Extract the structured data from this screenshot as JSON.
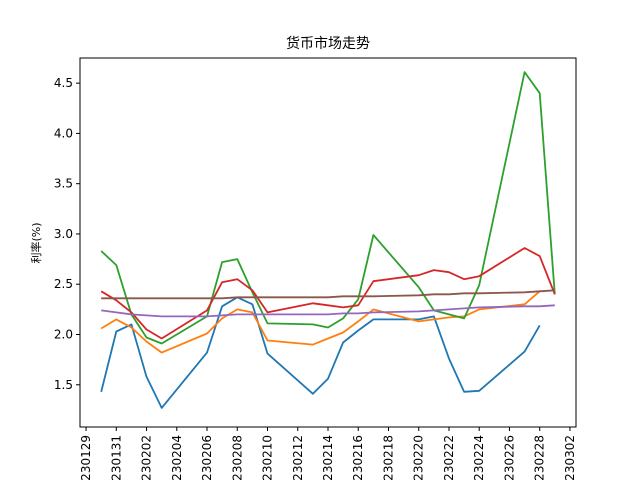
{
  "chart_data": {
    "type": "line",
    "title": "货币市场走势",
    "xlabel": "",
    "ylabel": "利率(%)",
    "xlim": [
      230128.6,
      230302.4
    ],
    "ylim": [
      1.08,
      4.75
    ],
    "xticks": [
      {
        "value": 230129,
        "label": "230129"
      },
      {
        "value": 230131,
        "label": "230131"
      },
      {
        "value": 230202,
        "label": "230202"
      },
      {
        "value": 230204,
        "label": "230204"
      },
      {
        "value": 230206,
        "label": "230206"
      },
      {
        "value": 230208,
        "label": "230208"
      },
      {
        "value": 230210,
        "label": "230210"
      },
      {
        "value": 230212,
        "label": "230212"
      },
      {
        "value": 230214,
        "label": "230214"
      },
      {
        "value": 230216,
        "label": "230216"
      },
      {
        "value": 230218,
        "label": "230218"
      },
      {
        "value": 230220,
        "label": "230220"
      },
      {
        "value": 230222,
        "label": "230222"
      },
      {
        "value": 230224,
        "label": "230224"
      },
      {
        "value": 230226,
        "label": "230226"
      },
      {
        "value": 230228,
        "label": "230228"
      },
      {
        "value": 230302,
        "label": "230302"
      }
    ],
    "yticks": [
      {
        "value": 1.5,
        "label": "1.5"
      },
      {
        "value": 2.0,
        "label": "2.0"
      },
      {
        "value": 2.5,
        "label": "2.5"
      },
      {
        "value": 3.0,
        "label": "3.0"
      },
      {
        "value": 3.5,
        "label": "3.5"
      },
      {
        "value": 4.0,
        "label": "4.0"
      },
      {
        "value": 4.5,
        "label": "4.5"
      }
    ],
    "grid": false,
    "series": [
      {
        "color": "#1f77b4",
        "x": [
          230130,
          230131,
          230132,
          230133,
          230134,
          230137,
          230138,
          230139,
          230140,
          230141,
          230144,
          230145,
          230146,
          230147,
          230148,
          230151,
          230152,
          230153,
          230154,
          230155,
          230158,
          230159
        ],
        "y": [
          1.43,
          2.03,
          2.1,
          1.58,
          1.27,
          1.82,
          2.28,
          2.37,
          2.3,
          1.81,
          1.41,
          1.56,
          1.92,
          2.04,
          2.15,
          2.15,
          2.18,
          1.76,
          1.43,
          1.44,
          1.83,
          2.09
        ]
      },
      {
        "color": "#ff7f0e",
        "x": [
          230130,
          230131,
          230132,
          230133,
          230134,
          230137,
          230138,
          230139,
          230140,
          230141,
          230144,
          230145,
          230146,
          230147,
          230148,
          230151,
          230152,
          230153,
          230154,
          230155,
          230158,
          230159
        ],
        "y": [
          2.06,
          2.15,
          2.07,
          1.93,
          1.82,
          2.01,
          2.16,
          2.25,
          2.22,
          1.94,
          1.9,
          1.96,
          2.02,
          2.13,
          2.25,
          2.13,
          2.15,
          2.17,
          2.18,
          2.25,
          2.3,
          2.43
        ]
      },
      {
        "color": "#2ca02c",
        "x": [
          230130,
          230131,
          230132,
          230133,
          230134,
          230137,
          230138,
          230139,
          230140,
          230141,
          230144,
          230145,
          230146,
          230147,
          230148,
          230151,
          230152,
          230153,
          230154,
          230155,
          230158,
          230159,
          230160
        ],
        "y": [
          2.83,
          2.69,
          2.2,
          1.97,
          1.91,
          2.18,
          2.72,
          2.75,
          2.42,
          2.11,
          2.1,
          2.07,
          2.16,
          2.35,
          2.99,
          2.47,
          2.24,
          2.2,
          2.16,
          2.49,
          4.61,
          4.4,
          2.4
        ]
      },
      {
        "color": "#d62728",
        "x": [
          230130,
          230131,
          230132,
          230133,
          230134,
          230137,
          230138,
          230139,
          230140,
          230141,
          230144,
          230145,
          230146,
          230147,
          230148,
          230151,
          230152,
          230153,
          230154,
          230155,
          230158,
          230159,
          230160
        ],
        "y": [
          2.43,
          2.34,
          2.22,
          2.05,
          1.96,
          2.24,
          2.52,
          2.55,
          2.44,
          2.22,
          2.31,
          2.29,
          2.27,
          2.29,
          2.53,
          2.59,
          2.64,
          2.62,
          2.55,
          2.58,
          2.86,
          2.78,
          2.4
        ]
      },
      {
        "color": "#9467bd",
        "x": [
          230130,
          230131,
          230132,
          230133,
          230134,
          230137,
          230138,
          230139,
          230140,
          230141,
          230144,
          230145,
          230146,
          230147,
          230148,
          230151,
          230152,
          230153,
          230154,
          230155,
          230158,
          230159,
          230160
        ],
        "y": [
          2.24,
          2.22,
          2.2,
          2.19,
          2.18,
          2.18,
          2.19,
          2.2,
          2.2,
          2.2,
          2.2,
          2.2,
          2.21,
          2.21,
          2.22,
          2.23,
          2.24,
          2.25,
          2.26,
          2.27,
          2.28,
          2.28,
          2.29
        ]
      },
      {
        "color": "#8c564b",
        "x": [
          230130,
          230131,
          230132,
          230133,
          230134,
          230137,
          230138,
          230139,
          230140,
          230141,
          230144,
          230145,
          230146,
          230147,
          230148,
          230151,
          230152,
          230153,
          230154,
          230155,
          230158,
          230159,
          230160
        ],
        "y": [
          2.36,
          2.36,
          2.36,
          2.36,
          2.36,
          2.36,
          2.36,
          2.37,
          2.37,
          2.37,
          2.37,
          2.37,
          2.38,
          2.38,
          2.38,
          2.39,
          2.4,
          2.4,
          2.41,
          2.41,
          2.42,
          2.43,
          2.44
        ]
      }
    ]
  }
}
